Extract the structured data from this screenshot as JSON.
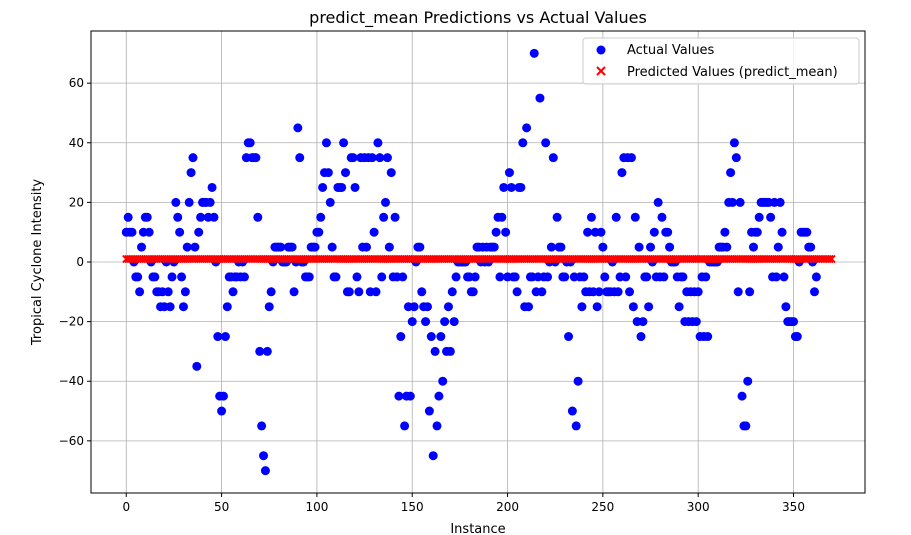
{
  "chart_data": {
    "type": "scatter",
    "title": "predict_mean Predictions vs Actual Values",
    "xlabel": "Instance",
    "ylabel": "Tropical Cyclone Intensity",
    "xlim": [
      -18.5,
      387.5
    ],
    "ylim": [
      -77.5,
      77.5
    ],
    "xticks": [
      0,
      50,
      100,
      150,
      200,
      250,
      300,
      350
    ],
    "yticks": [
      -60,
      -40,
      -20,
      0,
      20,
      40,
      60
    ],
    "grid": true,
    "legend": "top-right",
    "series": [
      {
        "name": "Actual Values",
        "marker": "circle",
        "color": "#0000ff",
        "y": [
          10,
          15,
          10,
          10,
          0,
          -5,
          -5,
          -10,
          5,
          10,
          15,
          15,
          10,
          0,
          -5,
          -5,
          -10,
          -10,
          -15,
          -10,
          -15,
          0,
          -10,
          -15,
          -5,
          0,
          20,
          15,
          10,
          -5,
          -15,
          -10,
          5,
          20,
          30,
          35,
          5,
          -35,
          10,
          15,
          20,
          20,
          20,
          15,
          20,
          25,
          15,
          0,
          -25,
          -45,
          -50,
          -45,
          -25,
          -15,
          -5,
          -5,
          -10,
          -5,
          -5,
          0,
          -5,
          0,
          -5,
          35,
          40,
          40,
          35,
          35,
          35,
          15,
          -30,
          -55,
          -65,
          -70,
          -30,
          -15,
          -10,
          0,
          5,
          5,
          5,
          5,
          0,
          0,
          0,
          5,
          5,
          5,
          -10,
          0,
          45,
          35,
          0,
          0,
          -5,
          -5,
          -5,
          5,
          5,
          5,
          10,
          10,
          15,
          25,
          30,
          40,
          30,
          20,
          5,
          -5,
          -5,
          25,
          25,
          25,
          40,
          30,
          -10,
          -10,
          35,
          35,
          25,
          -5,
          -10,
          35,
          5,
          35,
          5,
          35,
          -10,
          35,
          10,
          -10,
          40,
          35,
          -5,
          15,
          20,
          35,
          5,
          30,
          -5,
          15,
          -5,
          -45,
          -25,
          -5,
          -55,
          -45,
          -15,
          -45,
          -20,
          -15,
          0,
          5,
          5,
          -10,
          -15,
          -20,
          -15,
          -50,
          -25,
          -65,
          -30,
          -55,
          -45,
          -25,
          -40,
          -20,
          -30,
          -15,
          -30,
          -10,
          -20,
          -5,
          0,
          0,
          0,
          0,
          0,
          -5,
          -5,
          -10,
          -10,
          -5,
          5,
          5,
          0,
          5,
          0,
          5,
          0,
          5,
          5,
          5,
          10,
          15,
          -5,
          15,
          25,
          10,
          -5,
          30,
          25,
          -5,
          -5,
          -10,
          25,
          25,
          40,
          -15,
          45,
          -15,
          -5,
          -5,
          70,
          -10,
          -5,
          55,
          -10,
          -5,
          40,
          -5,
          0,
          5,
          35,
          0,
          15,
          5,
          5,
          -5,
          -5,
          0,
          -25,
          0,
          -50,
          -5,
          -55,
          -40,
          -5,
          -15,
          -5,
          -10,
          10,
          -10,
          15,
          -10,
          10,
          -15,
          -10,
          10,
          5,
          -5,
          -10,
          -10,
          -10,
          0,
          -10,
          15,
          -10,
          -5,
          30,
          35,
          -5,
          35,
          -10,
          35,
          -15,
          15,
          -20,
          5,
          -25,
          -20,
          -5,
          -5,
          -15,
          5,
          0,
          10,
          -5,
          20,
          -5,
          15,
          -5,
          10,
          10,
          5,
          0,
          0,
          0,
          -5,
          -15,
          -5,
          -5,
          -20,
          -10,
          -20,
          -10,
          -20,
          -10,
          -20,
          -10,
          -25,
          -5,
          -25,
          -5,
          -25,
          0,
          0,
          0,
          0,
          0,
          5,
          5,
          5,
          10,
          5,
          20,
          30,
          20,
          40,
          35,
          -10,
          20,
          -45,
          -55,
          -55,
          -40,
          -10,
          10,
          5,
          10,
          10,
          15,
          20,
          20,
          20,
          20,
          20,
          15,
          -5,
          20,
          -5,
          5,
          20,
          10,
          -5,
          -15,
          -20,
          -20,
          -20,
          -20,
          -25,
          -25,
          0,
          10,
          10,
          10,
          10,
          5,
          5,
          0,
          -10,
          -5
        ]
      },
      {
        "name": "Predicted Values (predict_mean)",
        "marker": "x",
        "color": "#ff0000",
        "constant_value": 1,
        "count": 371
      }
    ]
  }
}
